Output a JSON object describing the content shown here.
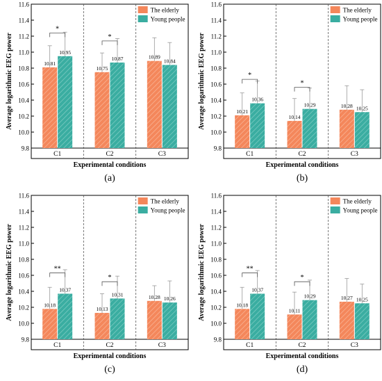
{
  "legend": {
    "elderly": "The elderly",
    "young": "Young people"
  },
  "colors": {
    "elderly": "#F4875B",
    "young": "#3AADA1",
    "axis": "#000000",
    "divider": "#555555",
    "errorbar": "#999999"
  },
  "chart_data": [
    {
      "type": "bar",
      "panel_label": "(a)",
      "ylabel": "Average logarithmic EEG power",
      "xlabel": "Experimental conditions",
      "ylim": [
        9.8,
        11.6
      ],
      "yticks": [
        "9.8",
        "10.0",
        "10.2",
        "10.4",
        "10.6",
        "10.8",
        "11.0",
        "11.2",
        "11.4",
        "11.6"
      ],
      "categories": [
        "C1",
        "C2",
        "C3"
      ],
      "series": [
        {
          "name": "The elderly",
          "values": [
            10.81,
            10.75,
            10.89
          ],
          "error_upper": [
            11.08,
            10.99,
            11.18
          ],
          "labels": [
            "10.81",
            "10.75",
            "10.89"
          ]
        },
        {
          "name": "Young people",
          "values": [
            10.95,
            10.87,
            10.84
          ],
          "error_upper": [
            11.25,
            11.17,
            11.12
          ],
          "labels": [
            "10.95",
            "10.87",
            "10.84"
          ]
        }
      ],
      "significance": [
        "*",
        "*",
        ""
      ],
      "sig_level": [
        11.24,
        11.14,
        null
      ]
    },
    {
      "type": "bar",
      "panel_label": "(b)",
      "ylabel": "Average logarithmic EEG power",
      "xlabel": "Experimental conditions",
      "ylim": [
        9.8,
        11.6
      ],
      "yticks": [
        "9.8",
        "10.0",
        "10.2",
        "10.4",
        "10.6",
        "10.8",
        "11.0",
        "11.2",
        "11.4",
        "11.6"
      ],
      "categories": [
        "C1",
        "C2",
        "C3"
      ],
      "series": [
        {
          "name": "The elderly",
          "values": [
            10.21,
            10.14,
            10.28
          ],
          "error_upper": [
            10.49,
            10.42,
            10.58
          ],
          "labels": [
            "10.21",
            "10.14",
            "10.28"
          ]
        },
        {
          "name": "Young people",
          "values": [
            10.36,
            10.29,
            10.25
          ],
          "error_upper": [
            10.64,
            10.55,
            10.53
          ],
          "labels": [
            "10.36",
            "10.29",
            "10.25"
          ]
        }
      ],
      "significance": [
        "*",
        "*",
        ""
      ],
      "sig_level": [
        10.66,
        10.56,
        null
      ]
    },
    {
      "type": "bar",
      "panel_label": "(c)",
      "ylabel": "Average logarithmic EEG power",
      "xlabel": "Experimental conditions",
      "ylim": [
        9.8,
        11.6
      ],
      "yticks": [
        "9.8",
        "10.0",
        "10.2",
        "10.4",
        "10.6",
        "10.8",
        "11.0",
        "11.2",
        "11.4",
        "11.6"
      ],
      "categories": [
        "C1",
        "C2",
        "C3"
      ],
      "series": [
        {
          "name": "The elderly",
          "values": [
            10.18,
            10.13,
            10.28
          ],
          "error_upper": [
            10.45,
            10.37,
            10.47
          ],
          "labels": [
            "10.18",
            "10.13",
            "10.28"
          ]
        },
        {
          "name": "Young people",
          "values": [
            10.37,
            10.31,
            10.26
          ],
          "error_upper": [
            10.67,
            10.59,
            10.53
          ],
          "labels": [
            "10.37",
            "10.31",
            "10.26"
          ]
        }
      ],
      "significance": [
        "**",
        "*",
        ""
      ],
      "sig_level": [
        10.63,
        10.52,
        null
      ]
    },
    {
      "type": "bar",
      "panel_label": "(d)",
      "ylabel": "Average logarithmic EEG power",
      "xlabel": "Experimental conditions",
      "ylim": [
        9.8,
        11.6
      ],
      "yticks": [
        "9.8",
        "10.0",
        "10.2",
        "10.4",
        "10.6",
        "10.8",
        "11.0",
        "11.2",
        "11.4",
        "11.6"
      ],
      "categories": [
        "C1",
        "C2",
        "C3"
      ],
      "series": [
        {
          "name": "The elderly",
          "values": [
            10.18,
            10.11,
            10.27
          ],
          "error_upper": [
            10.45,
            10.39,
            10.56
          ],
          "labels": [
            "10.18",
            "10.11",
            "10.27"
          ]
        },
        {
          "name": "Young people",
          "values": [
            10.37,
            10.29,
            10.25
          ],
          "error_upper": [
            10.66,
            10.54,
            10.49
          ],
          "labels": [
            "10.37",
            "10.29",
            "10.25"
          ]
        }
      ],
      "significance": [
        "**",
        "*",
        ""
      ],
      "sig_level": [
        10.63,
        10.52,
        null
      ]
    }
  ]
}
